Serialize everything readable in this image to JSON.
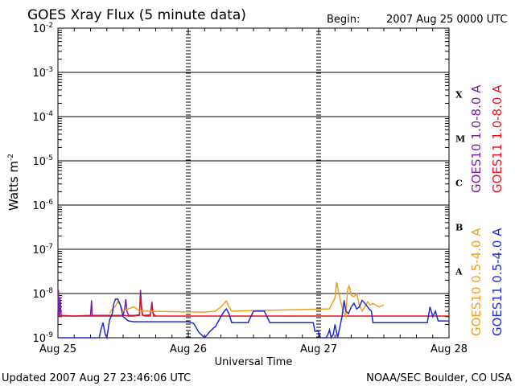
{
  "header": {
    "title": "GOES Xray Flux (5 minute data)",
    "begin_label": "Begin:",
    "begin_value": "2007 Aug 25 0000 UTC"
  },
  "footer": {
    "updated": "Updated 2007 Aug 27 23:46:06 UTC",
    "credit": "NOAA/SEC Boulder, CO USA"
  },
  "colors": {
    "goes10_long": "#7a1fa2",
    "goes11_long": "#e8141e",
    "goes10_short": "#f0a020",
    "goes11_short": "#1f2bd6",
    "grid": "#000000"
  },
  "chart_data": {
    "type": "line",
    "title": "GOES Xray Flux (5 minute data)",
    "xlabel": "Universal Time",
    "ylabel": "Watts m",
    "ylabel_sup": "-2",
    "y_scale": "log",
    "ylim": [
      1e-09,
      0.01
    ],
    "y_tick_base": "10",
    "y_tick_exponents": [
      "-9",
      "-8",
      "-7",
      "-6",
      "-5",
      "-4",
      "-3",
      "-2"
    ],
    "x_tick_labels": [
      "Aug 25",
      "Aug 26",
      "Aug 27",
      "Aug 28"
    ],
    "xlim": [
      0,
      72
    ],
    "x_units": "hours since 2007 Aug 25 0000 UTC",
    "flare_classes": [
      "A",
      "B",
      "C",
      "M",
      "X"
    ],
    "series": [
      {
        "name": "GOES10 1.0-8.0 A",
        "color": "#7a1fa2",
        "x": [
          0,
          0.1,
          0.2,
          0.3,
          0.4,
          0.6,
          3,
          6,
          6.2,
          6.3,
          6.5,
          11,
          11.5,
          12,
          12.3,
          12.5,
          12.7,
          13,
          14,
          15,
          15.2,
          15.4,
          15.6,
          16,
          17,
          17.3,
          17.5,
          17.8,
          18
        ],
        "y": [
          3.2e-09,
          1.2e-08,
          3.2e-09,
          3.2e-09,
          8e-09,
          3.2e-09,
          3.1e-09,
          3.2e-09,
          7e-09,
          3.2e-09,
          3.2e-09,
          3.2e-09,
          3.2e-09,
          3.2e-09,
          4.5e-09,
          7.5e-09,
          4e-09,
          3.2e-09,
          3.2e-09,
          3.3e-09,
          1.2e-08,
          5e-09,
          3.2e-09,
          3.2e-09,
          3.3e-09,
          6.5e-09,
          3.6e-09,
          3.2e-09,
          3.2e-09
        ]
      },
      {
        "name": "GOES11 1.0-8.0 A",
        "color": "#e8141e",
        "x": [
          0,
          1,
          4,
          6,
          9,
          11,
          11.7,
          12.2,
          13,
          14,
          15,
          15.2,
          15.5,
          16,
          17,
          17.3,
          17.6,
          20,
          24,
          28,
          32,
          36,
          40,
          44,
          48,
          52,
          56,
          60,
          64,
          68,
          72
        ],
        "y": [
          3.1e-09,
          3.1e-09,
          3.1e-09,
          3.1e-09,
          3.1e-09,
          3.1e-09,
          3.1e-09,
          3.2e-09,
          3.1e-09,
          3.1e-09,
          3.2e-09,
          8e-09,
          3.4e-09,
          3.1e-09,
          3.1e-09,
          5.5e-09,
          3.1e-09,
          3.1e-09,
          3.1e-09,
          3.1e-09,
          3.1e-09,
          3.1e-09,
          3.1e-09,
          3.1e-09,
          3.1e-09,
          3.1e-09,
          3.1e-09,
          3.1e-09,
          3.1e-09,
          3.1e-09,
          3.1e-09
        ]
      },
      {
        "name": "GOES10 0.5-4.0 A",
        "color": "#f0a020",
        "x": [
          9.5,
          10,
          10.5,
          11,
          11.5,
          12,
          13,
          14,
          14.5,
          15,
          27,
          29,
          30,
          31,
          31.5,
          32,
          50,
          51,
          51.3,
          51.6,
          52,
          52.5,
          53,
          53.3,
          53.6,
          54,
          54.5,
          55,
          55.5,
          56,
          56.5,
          57,
          57.5,
          58,
          59,
          60
        ],
        "y": [
          3.5e-09,
          4.5e-09,
          5e-09,
          6.5e-09,
          5.5e-09,
          4e-09,
          4.5e-09,
          5e-09,
          4.5e-09,
          4e-09,
          3.8e-09,
          4e-09,
          5e-09,
          6.8e-09,
          5e-09,
          4e-09,
          4.5e-09,
          8e-09,
          1.8e-08,
          1.2e-08,
          7e-09,
          4e-09,
          3e-09,
          1.2e-08,
          1.5e-08,
          9e-09,
          8.5e-09,
          1e-08,
          5.5e-09,
          4e-09,
          5e-09,
          6.5e-09,
          5.5e-09,
          6e-09,
          5e-09,
          5.5e-09
        ]
      },
      {
        "name": "GOES11 0.5-4.0 A",
        "color": "#1f2bd6",
        "x": [
          0,
          0.5,
          1,
          1.5,
          2,
          2.5,
          3,
          4,
          4.5,
          5,
          5.5,
          6,
          6.2,
          6.4,
          6.7,
          7,
          7.4,
          7.6,
          7.9,
          8.3,
          8.7,
          9,
          9.5,
          10,
          10.3,
          10.6,
          11,
          11.5,
          12,
          13,
          14,
          15,
          17,
          20,
          24,
          25,
          26,
          27,
          28,
          28.5,
          29,
          30,
          30.5,
          31,
          31.5,
          32,
          33,
          34,
          35,
          36,
          37,
          38,
          39,
          40,
          41,
          42,
          43,
          44,
          45,
          46,
          47,
          47.3,
          47.8,
          48,
          48.3,
          48.6,
          49,
          49.3,
          49.6,
          50,
          50.3,
          50.7,
          51,
          51.5,
          52,
          52.3,
          52.7,
          53,
          53.5,
          54,
          54.5,
          55,
          55.5,
          56,
          56.5,
          57,
          57.3,
          57.7,
          58,
          59,
          60,
          62,
          64,
          66,
          68,
          68.5,
          69,
          69.5,
          70,
          71,
          72
        ],
        "y": [
          1e-09,
          1e-09,
          1e-09,
          1e-09,
          1e-09,
          1e-09,
          1e-09,
          1e-09,
          1e-09,
          1e-09,
          1e-09,
          1e-09,
          1e-09,
          1e-09,
          1e-09,
          1e-09,
          1e-09,
          1e-09,
          1.5e-09,
          2.2e-09,
          1.2e-09,
          1e-09,
          2.5e-09,
          3.5e-09,
          6e-09,
          7.5e-09,
          7.5e-09,
          5.5e-09,
          3e-09,
          2.4e-09,
          2.3e-09,
          2.3e-09,
          2.3e-09,
          2.3e-09,
          2.3e-09,
          2.1e-09,
          1.3e-09,
          1e-09,
          1.4e-09,
          1.6e-09,
          1.8e-09,
          3e-09,
          3.8e-09,
          4.5e-09,
          3.5e-09,
          2.2e-09,
          2.2e-09,
          2.2e-09,
          2.2e-09,
          4e-09,
          4e-09,
          4e-09,
          2.2e-09,
          2.2e-09,
          2.2e-09,
          2.2e-09,
          2.2e-09,
          2.2e-09,
          2.2e-09,
          2.2e-09,
          2.2e-09,
          1.4e-09,
          1.4e-09,
          1.4e-09,
          1e-09,
          1e-09,
          1e-09,
          1e-09,
          1.1e-09,
          1.5e-09,
          1e-09,
          1.2e-09,
          2e-09,
          1e-09,
          2e-09,
          3e-09,
          7e-09,
          4e-09,
          3.5e-09,
          5e-09,
          6e-09,
          4.5e-09,
          5e-09,
          7e-09,
          6e-09,
          5e-09,
          4.5e-09,
          4e-09,
          2.2e-09,
          2.2e-09,
          2.2e-09,
          2.2e-09,
          2.2e-09,
          2.2e-09,
          2.2e-09,
          5e-09,
          3e-09,
          4e-09,
          2.4e-09,
          2.4e-09,
          2.4e-09
        ]
      }
    ]
  }
}
